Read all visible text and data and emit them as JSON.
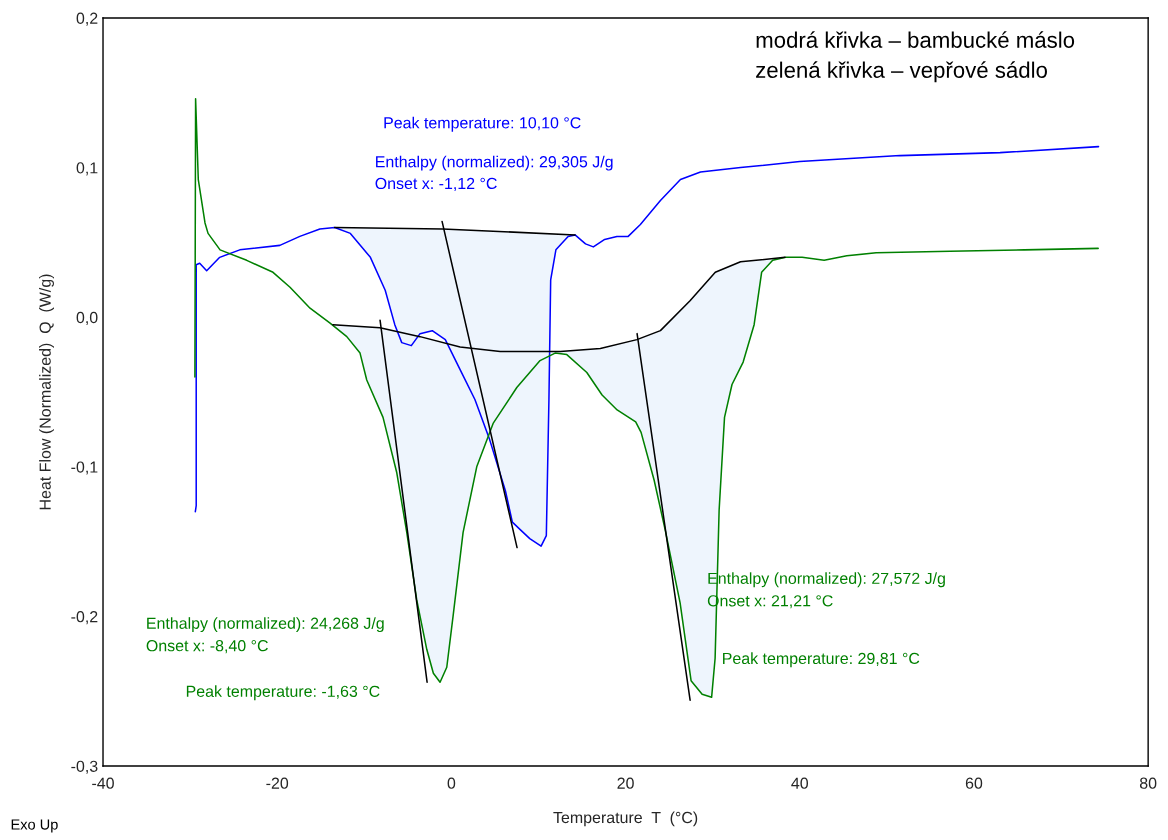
{
  "chart_data": {
    "type": "line",
    "xlabel": "Temperature  T  (°C)",
    "ylabel": "Heat Flow (Normalized)  Q  (W/g)",
    "xlim": [
      -40,
      80
    ],
    "xticks": [
      -40,
      -20,
      0,
      20,
      40,
      60,
      80
    ],
    "ylim": [
      -0.3,
      0.2
    ],
    "yticks": [
      {
        "value": -0.3,
        "label": "-0,3"
      },
      {
        "value": -0.2,
        "label": "-0,2"
      },
      {
        "value": -0.1,
        "label": "-0,1"
      },
      {
        "value": 0.0,
        "label": "0,0"
      },
      {
        "value": 0.1,
        "label": "0,1"
      },
      {
        "value": 0.2,
        "label": "0,2"
      }
    ],
    "grid": false,
    "series": [
      {
        "color": "#0000ff",
        "x": [
          -29.4,
          -29.3,
          -29.3,
          -28.9,
          -28.1,
          -26.6,
          -24.3,
          -19.7,
          -17.4,
          -15.1,
          -13.4,
          -11.6,
          -9.3,
          -7.6,
          -6.5,
          -5.7,
          -4.6,
          -3.6,
          -2.2,
          -0.7,
          1.0,
          2.7,
          4.4,
          6.2,
          7.0,
          7.9,
          9.0,
          10.3,
          10.9,
          11.2,
          11.4,
          12.0,
          13.4,
          14.2,
          15.4,
          16.3,
          17.6,
          19.0,
          20.3,
          21.7,
          24.0,
          26.3,
          28.6,
          33.2,
          40.0,
          51.5,
          63.0,
          74.3
        ],
        "values": [
          -0.13,
          -0.126,
          0.035,
          0.036,
          0.031,
          0.04,
          0.045,
          0.048,
          0.054,
          0.059,
          0.06,
          0.056,
          0.04,
          0.018,
          -0.005,
          -0.017,
          -0.019,
          -0.011,
          -0.009,
          -0.015,
          -0.035,
          -0.055,
          -0.082,
          -0.116,
          -0.137,
          -0.142,
          -0.148,
          -0.153,
          -0.146,
          -0.055,
          0.025,
          0.045,
          0.054,
          0.055,
          0.049,
          0.047,
          0.052,
          0.054,
          0.054,
          0.062,
          0.078,
          0.092,
          0.097,
          0.1,
          0.104,
          0.108,
          0.11,
          0.114
        ]
      },
      {
        "color": "#008000",
        "x": [
          -29.45,
          -29.37,
          -29.06,
          -28.29,
          -27.94,
          -26.56,
          -23.5,
          -20.48,
          -18.53,
          -16.23,
          -13.93,
          -12.01,
          -10.49,
          -9.72,
          -7.85,
          -6.27,
          -5.12,
          -3.98,
          -2.83,
          -2.07,
          -1.3,
          -0.53,
          0.19,
          1.34,
          2.91,
          4.79,
          7.51,
          10.18,
          11.91,
          13.25,
          15.55,
          17.3,
          19.03,
          21.16,
          21.78,
          23.28,
          24.54,
          26.26,
          27.52,
          28.79,
          29.88,
          30.28,
          30.74,
          31.36,
          32.22,
          33.5,
          34.76,
          35.62,
          36.89,
          38.39,
          40.27,
          42.8,
          45.4,
          48.77,
          57.27,
          65.77,
          74.26
        ],
        "values": [
          -0.04,
          0.146,
          0.092,
          0.063,
          0.056,
          0.045,
          0.038,
          0.03,
          0.02,
          0.006,
          -0.004,
          -0.013,
          -0.024,
          -0.042,
          -0.067,
          -0.104,
          -0.144,
          -0.189,
          -0.222,
          -0.238,
          -0.244,
          -0.234,
          -0.2,
          -0.144,
          -0.1,
          -0.071,
          -0.047,
          -0.029,
          -0.024,
          -0.025,
          -0.037,
          -0.052,
          -0.062,
          -0.07,
          -0.077,
          -0.109,
          -0.142,
          -0.191,
          -0.243,
          -0.252,
          -0.254,
          -0.228,
          -0.129,
          -0.067,
          -0.045,
          -0.03,
          -0.005,
          0.03,
          0.038,
          0.04,
          0.04,
          0.038,
          0.041,
          0.043,
          0.044,
          0.045,
          0.046
        ]
      },
      {
        "color": "#000000",
        "x": [
          -13.4,
          -1.0,
          14.2
        ],
        "values": [
          0.06,
          0.059,
          0.055
        ]
      },
      {
        "color": "#000000",
        "x": [
          -13.6,
          -8.2,
          -3.6,
          1.0,
          5.6,
          12.5,
          17.1,
          21.3,
          24.0,
          27.4,
          30.3,
          33.2,
          38.3
        ],
        "values": [
          -0.005,
          -0.007,
          -0.013,
          -0.02,
          -0.023,
          -0.023,
          -0.021,
          -0.015,
          -0.009,
          0.011,
          0.03,
          0.037,
          0.04
        ]
      },
      {
        "color": "#000000",
        "x": [
          -1.07,
          7.54
        ],
        "values": [
          0.064,
          -0.154
        ]
      },
      {
        "color": "#000000",
        "x": [
          -8.19,
          -2.79
        ],
        "values": [
          -0.002,
          -0.244
        ]
      },
      {
        "color": "#000000",
        "x": [
          21.32,
          27.41
        ],
        "values": [
          -0.011,
          -0.256
        ]
      }
    ],
    "annotations": [
      "Peak temperature: 10,10 °C",
      "Enthalpy (normalized): 29,305 J/g",
      "Onset x: -1,12 °C",
      "Enthalpy (normalized): 24,268 J/g",
      "Onset x: -8,40 °C",
      "Peak temperature: -1,63 °C",
      "Enthalpy (normalized): 27,572 J/g",
      "Onset x: 21,21 °C",
      "Peak temperature: 29,81 °C",
      "modrá křivka – bambucké máslo",
      "zelená křivka – vepřové sádlo",
      "Exo Up"
    ]
  }
}
